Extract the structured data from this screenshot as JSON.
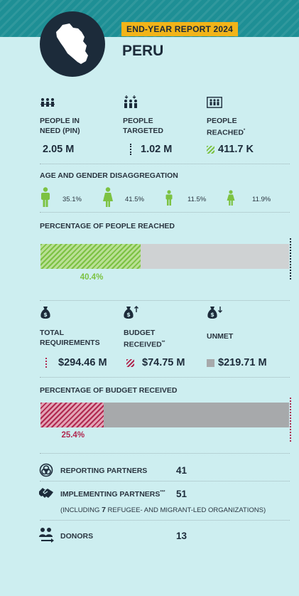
{
  "header": {
    "report_tag": "END-YEAR REPORT 2024",
    "country": "PERU"
  },
  "people": {
    "in_need": {
      "label_line1": "PEOPLE IN",
      "label_line2": "NEED (PIN)",
      "value": "2.05 M"
    },
    "targeted": {
      "label_line1": "PEOPLE",
      "label_line2": "TARGETED",
      "value": "1.02 M"
    },
    "reached": {
      "label_line1": "PEOPLE",
      "label_line2": "REACHED",
      "footnote": "*",
      "value": "411.7 K"
    }
  },
  "age_gender": {
    "title": "AGE AND GENDER DISAGGREGATION",
    "items": [
      {
        "icon": "adult-male-icon",
        "value": "35.1%"
      },
      {
        "icon": "adult-female-icon",
        "value": "41.5%"
      },
      {
        "icon": "boy-icon",
        "value": "11.5%"
      },
      {
        "icon": "girl-icon",
        "value": "11.9%"
      }
    ]
  },
  "reached_bar": {
    "title": "PERCENTAGE OF PEOPLE REACHED",
    "label": "40.4%",
    "fraction": 0.404,
    "color": "#7cc242"
  },
  "budget": {
    "total": {
      "label_line1": "TOTAL",
      "label_line2": "REQUIREMENTS",
      "value": "$294.46 M"
    },
    "received": {
      "label_line1": "BUDGET",
      "label_line2": "RECEIVED",
      "footnote": "**",
      "value": "$74.75 M"
    },
    "unmet": {
      "label_line1": "UNMET",
      "value": "$219.71 M"
    }
  },
  "budget_bar": {
    "title": "PERCENTAGE OF BUDGET RECEIVED",
    "label": "25.4%",
    "fraction": 0.254,
    "color": "#b0274f",
    "unmet_color": "#a7a9ab"
  },
  "partners": {
    "reporting": {
      "label": "REPORTING PARTNERS",
      "value": "41"
    },
    "implementing": {
      "label": "IMPLEMENTING PARTNERS",
      "footnote": "***",
      "value": "51",
      "note_prefix": "(INCLUDING ",
      "note_count": "7",
      "note_suffix": " REFUGEE- AND MIGRANT-LED ORGANIZATIONS)"
    },
    "donors": {
      "label": "DONORS",
      "value": "13"
    }
  }
}
